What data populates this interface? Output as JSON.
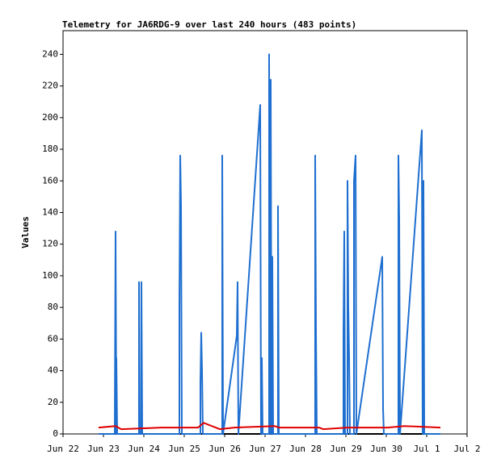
{
  "chart_data": {
    "type": "line",
    "title": "Telemetry for JA6RDG-9 over last 240 hours (483 points)",
    "y_label": "Values",
    "xlim": [
      22,
      32
    ],
    "xticks": [
      {
        "value": 22,
        "label": "Jun 22"
      },
      {
        "value": 23,
        "label": "Jun 23"
      },
      {
        "value": 24,
        "label": "Jun 24"
      },
      {
        "value": 25,
        "label": "Jun 25"
      },
      {
        "value": 26,
        "label": "Jun 26"
      },
      {
        "value": 27,
        "label": "Jun 27"
      },
      {
        "value": 28,
        "label": "Jun 28"
      },
      {
        "value": 29,
        "label": "Jun 29"
      },
      {
        "value": 30,
        "label": "Jun 30"
      },
      {
        "value": 31,
        "label": "Jul 1"
      },
      {
        "value": 32,
        "label": "Jul 2"
      }
    ],
    "ylim": [
      0,
      255
    ],
    "yticks": [
      0,
      20,
      40,
      60,
      80,
      100,
      120,
      140,
      160,
      180,
      200,
      220,
      240
    ],
    "series": [
      {
        "color": "#000000",
        "x": [
          22.88,
          31.34
        ],
        "values": [
          0,
          0
        ]
      },
      {
        "color": "#1f6fd0",
        "x": [
          22.88,
          23.28,
          23.3,
          23.32,
          23.32,
          23.34,
          23.88,
          23.88,
          23.9,
          23.94,
          23.94,
          23.96,
          24.88,
          24.88,
          24.9,
          24.92,
          24.94,
          25.4,
          25.4,
          25.42,
          25.44,
          25.46,
          25.94,
          25.94,
          25.96,
          26.3,
          26.32,
          26.34,
          26.88,
          26.9,
          26.92,
          26.94,
          27.1,
          27.1,
          27.12,
          27.14,
          27.16,
          27.18,
          27.2,
          27.32,
          27.32,
          27.34,
          28.24,
          28.24,
          28.26,
          28.28,
          28.94,
          28.94,
          28.96,
          28.98,
          29.04,
          29.04,
          29.06,
          29.08,
          29.1,
          29.2,
          29.2,
          29.24,
          29.26,
          29.9,
          29.92,
          29.94,
          30.3,
          30.3,
          30.32,
          30.34,
          30.88,
          30.9,
          30.92,
          30.94,
          31.34
        ],
        "values": [
          0,
          0,
          128,
          0,
          48,
          0,
          0,
          96,
          0,
          0,
          96,
          0,
          0,
          80,
          176,
          144,
          0,
          0,
          32,
          64,
          40,
          0,
          0,
          176,
          0,
          62,
          96,
          0,
          208,
          0,
          48,
          0,
          0,
          240,
          0,
          224,
          0,
          112,
          0,
          0,
          144,
          0,
          0,
          176,
          64,
          0,
          0,
          64,
          128,
          0,
          0,
          160,
          80,
          48,
          0,
          0,
          160,
          176,
          0,
          112,
          16,
          0,
          0,
          176,
          136,
          0,
          192,
          0,
          160,
          0,
          0
        ]
      },
      {
        "color": "#e00000",
        "x": [
          22.88,
          23.3,
          23.44,
          24.44,
          25.34,
          25.48,
          25.88,
          26.24,
          27.24,
          27.34,
          28.34,
          28.44,
          29.04,
          30.04,
          30.44,
          31.34
        ],
        "values": [
          4,
          5,
          3,
          4,
          4,
          7,
          3,
          4,
          5,
          4,
          4,
          3,
          4,
          4,
          5,
          4
        ]
      }
    ]
  }
}
